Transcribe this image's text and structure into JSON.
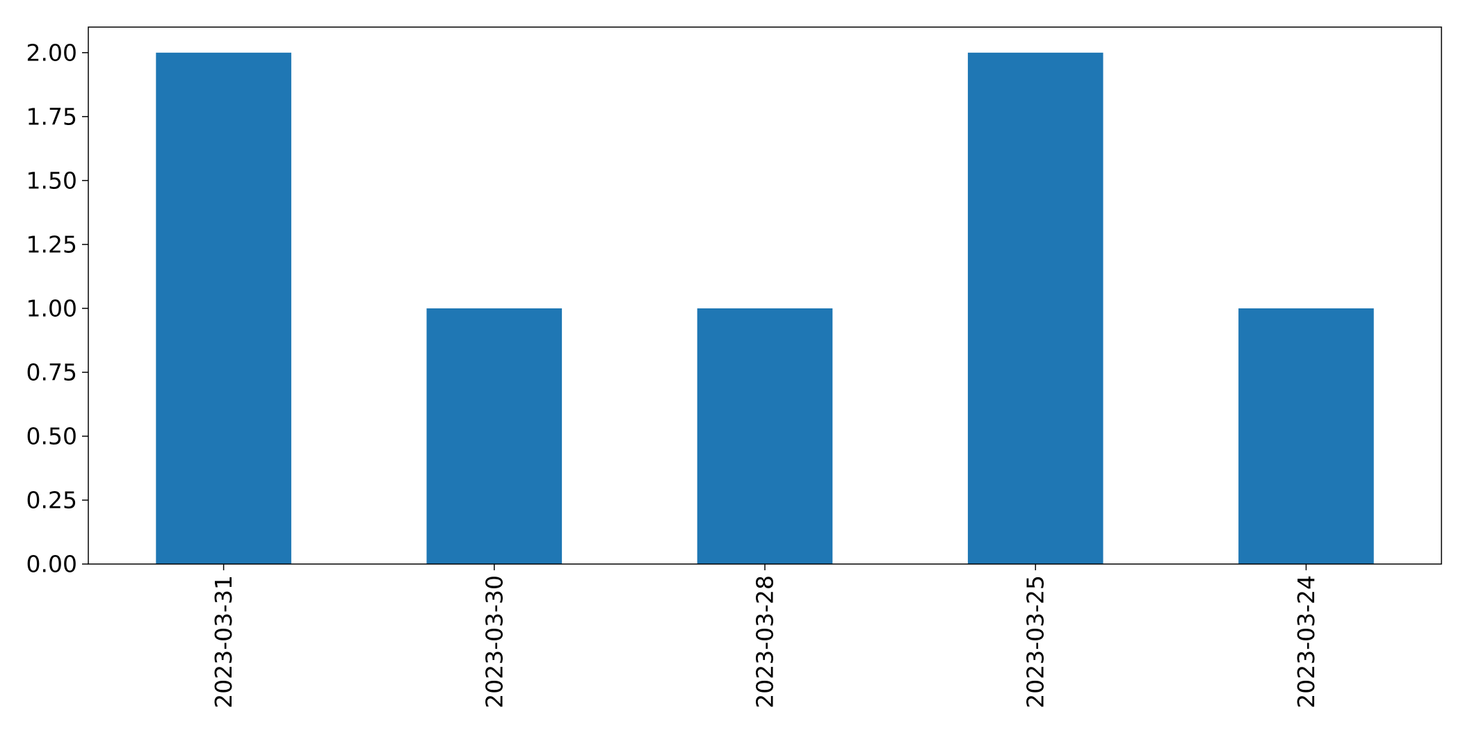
{
  "chart_data": {
    "type": "bar",
    "categories": [
      "2023-03-31",
      "2023-03-30",
      "2023-03-28",
      "2023-03-25",
      "2023-03-24"
    ],
    "values": [
      2,
      1,
      1,
      2,
      1
    ],
    "title": "",
    "xlabel": "",
    "ylabel": "",
    "ylim": [
      0,
      2.1
    ],
    "yticks": [
      "0.00",
      "0.25",
      "0.50",
      "0.75",
      "1.00",
      "1.25",
      "1.50",
      "1.75",
      "2.00"
    ],
    "bar_color": "#1f77b4",
    "grid": false,
    "legend": "none"
  }
}
